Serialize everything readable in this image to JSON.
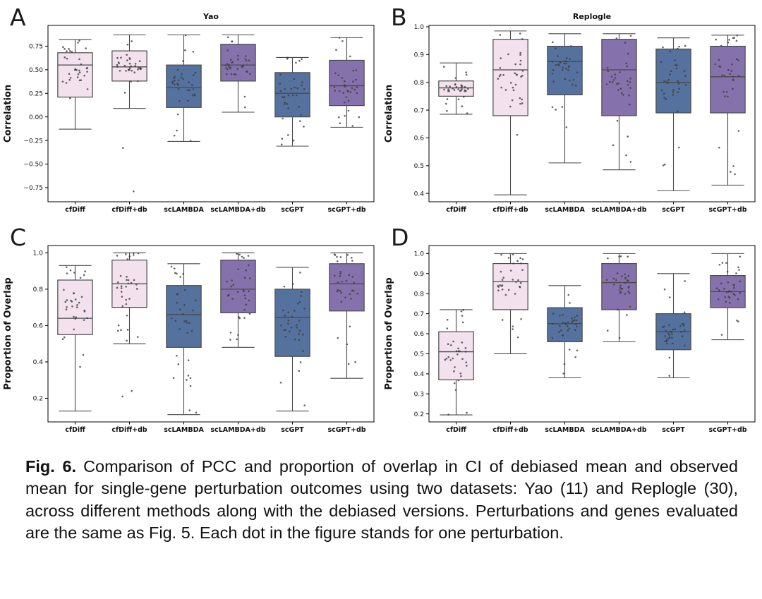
{
  "style": {
    "palette": {
      "pink": "#f3e2ee",
      "blue": "#55729e",
      "purple": "#8572ad"
    },
    "box_edge": "#4a4a4a",
    "median_color": "#4a4a4a",
    "point_color": "#3d3d3d",
    "frame_color": "#000000",
    "background": "#ffffff"
  },
  "chart_data": [
    {
      "type": "box",
      "panel_label": "A",
      "title": "Yao",
      "ylabel": "Correlation",
      "ylim": [
        -0.9,
        0.97
      ],
      "yticks": [
        {
          "v": 0.75,
          "label": "0.75"
        },
        {
          "v": 0.5,
          "label": "0.50"
        },
        {
          "v": 0.25,
          "label": "0.25"
        },
        {
          "v": 0.0,
          "label": "0.00"
        },
        {
          "v": -0.25,
          "label": "−0.25"
        },
        {
          "v": -0.5,
          "label": "−0.50"
        },
        {
          "v": -0.75,
          "label": "−0.75"
        }
      ],
      "categories": [
        "cfDiff",
        "cfDiff+db",
        "scLAMBDA",
        "scLAMBDA+db",
        "scGPT",
        "scGPT+db"
      ],
      "box_colors": [
        "pink",
        "pink",
        "blue",
        "purple",
        "blue",
        "purple"
      ],
      "boxes": [
        {
          "whislo": -0.13,
          "q1": 0.21,
          "med": 0.55,
          "q3": 0.68,
          "whishi": 0.82,
          "outliers": []
        },
        {
          "whislo": 0.09,
          "q1": 0.38,
          "med": 0.53,
          "q3": 0.7,
          "whishi": 0.87,
          "outliers": [
            -0.33,
            -0.79
          ]
        },
        {
          "whislo": -0.26,
          "q1": 0.1,
          "med": 0.31,
          "q3": 0.55,
          "whishi": 0.87,
          "outliers": []
        },
        {
          "whislo": 0.05,
          "q1": 0.38,
          "med": 0.55,
          "q3": 0.77,
          "whishi": 0.87,
          "outliers": []
        },
        {
          "whislo": -0.31,
          "q1": 0.0,
          "med": 0.25,
          "q3": 0.47,
          "whishi": 0.63,
          "outliers": []
        },
        {
          "whislo": -0.11,
          "q1": 0.12,
          "med": 0.33,
          "q3": 0.6,
          "whishi": 0.84,
          "outliers": []
        }
      ]
    },
    {
      "type": "box",
      "panel_label": "B",
      "title": "Replogle",
      "ylabel": "Correlation",
      "ylim": [
        0.37,
        1.005
      ],
      "yticks": [
        {
          "v": 1.0,
          "label": "1.0"
        },
        {
          "v": 0.9,
          "label": "0.9"
        },
        {
          "v": 0.8,
          "label": "0.8"
        },
        {
          "v": 0.7,
          "label": "0.7"
        },
        {
          "v": 0.6,
          "label": "0.6"
        },
        {
          "v": 0.5,
          "label": "0.5"
        },
        {
          "v": 0.4,
          "label": "0.4"
        }
      ],
      "categories": [
        "cfDiff",
        "cfDiff+db",
        "scLAMBDA",
        "scLAMBDA+db",
        "scGPT",
        "scGPT+db"
      ],
      "box_colors": [
        "pink",
        "pink",
        "blue",
        "purple",
        "blue",
        "purple"
      ],
      "boxes": [
        {
          "whislo": 0.685,
          "q1": 0.75,
          "med": 0.78,
          "q3": 0.805,
          "whishi": 0.87,
          "outliers": []
        },
        {
          "whislo": 0.395,
          "q1": 0.68,
          "med": 0.845,
          "q3": 0.955,
          "whishi": 0.985,
          "outliers": []
        },
        {
          "whislo": 0.51,
          "q1": 0.755,
          "med": 0.875,
          "q3": 0.93,
          "whishi": 0.975,
          "outliers": []
        },
        {
          "whislo": 0.485,
          "q1": 0.68,
          "med": 0.845,
          "q3": 0.955,
          "whishi": 0.975,
          "outliers": []
        },
        {
          "whislo": 0.41,
          "q1": 0.69,
          "med": 0.8,
          "q3": 0.92,
          "whishi": 0.96,
          "outliers": []
        },
        {
          "whislo": 0.43,
          "q1": 0.69,
          "med": 0.82,
          "q3": 0.93,
          "whishi": 0.97,
          "outliers": []
        }
      ]
    },
    {
      "type": "box",
      "panel_label": "C",
      "title": "",
      "ylabel": "Proportion of Overlap",
      "ylim": [
        0.07,
        1.04
      ],
      "yticks": [
        {
          "v": 1.0,
          "label": "1.0"
        },
        {
          "v": 0.8,
          "label": "0.8"
        },
        {
          "v": 0.6,
          "label": "0.6"
        },
        {
          "v": 0.4,
          "label": "0.4"
        },
        {
          "v": 0.2,
          "label": "0.2"
        }
      ],
      "categories": [
        "cfDiff",
        "cfDiff+db",
        "scLAMBDA",
        "scLAMBDA+db",
        "scGPT",
        "scGPT+db"
      ],
      "box_colors": [
        "pink",
        "pink",
        "blue",
        "purple",
        "blue",
        "purple"
      ],
      "boxes": [
        {
          "whislo": 0.13,
          "q1": 0.55,
          "med": 0.64,
          "q3": 0.85,
          "whishi": 0.93,
          "outliers": []
        },
        {
          "whislo": 0.5,
          "q1": 0.7,
          "med": 0.83,
          "q3": 0.96,
          "whishi": 1.0,
          "outliers": [
            0.24,
            0.21
          ]
        },
        {
          "whislo": 0.11,
          "q1": 0.48,
          "med": 0.66,
          "q3": 0.82,
          "whishi": 0.94,
          "outliers": []
        },
        {
          "whislo": 0.48,
          "q1": 0.67,
          "med": 0.8,
          "q3": 0.96,
          "whishi": 1.0,
          "outliers": []
        },
        {
          "whislo": 0.13,
          "q1": 0.43,
          "med": 0.645,
          "q3": 0.8,
          "whishi": 0.92,
          "outliers": []
        },
        {
          "whislo": 0.31,
          "q1": 0.68,
          "med": 0.83,
          "q3": 0.94,
          "whishi": 1.0,
          "outliers": []
        }
      ]
    },
    {
      "type": "box",
      "panel_label": "D",
      "title": "",
      "ylabel": "Proportion of Overlap",
      "ylim": [
        0.16,
        1.04
      ],
      "yticks": [
        {
          "v": 1.0,
          "label": "1.0"
        },
        {
          "v": 0.9,
          "label": "0.9"
        },
        {
          "v": 0.8,
          "label": "0.8"
        },
        {
          "v": 0.7,
          "label": "0.7"
        },
        {
          "v": 0.6,
          "label": "0.6"
        },
        {
          "v": 0.5,
          "label": "0.5"
        },
        {
          "v": 0.4,
          "label": "0.4"
        },
        {
          "v": 0.3,
          "label": "0.3"
        },
        {
          "v": 0.2,
          "label": "0.2"
        }
      ],
      "categories": [
        "cfDiff",
        "cfDiff+db",
        "scLAMBDA",
        "scLAMBDA+db",
        "scGPT",
        "scGPT+db"
      ],
      "box_colors": [
        "pink",
        "pink",
        "blue",
        "purple",
        "blue",
        "purple"
      ],
      "boxes": [
        {
          "whislo": 0.195,
          "q1": 0.37,
          "med": 0.51,
          "q3": 0.61,
          "whishi": 0.72,
          "outliers": []
        },
        {
          "whislo": 0.5,
          "q1": 0.72,
          "med": 0.86,
          "q3": 0.95,
          "whishi": 1.0,
          "outliers": []
        },
        {
          "whislo": 0.38,
          "q1": 0.56,
          "med": 0.65,
          "q3": 0.73,
          "whishi": 0.84,
          "outliers": []
        },
        {
          "whislo": 0.56,
          "q1": 0.72,
          "med": 0.855,
          "q3": 0.95,
          "whishi": 1.0,
          "outliers": []
        },
        {
          "whislo": 0.38,
          "q1": 0.52,
          "med": 0.61,
          "q3": 0.7,
          "whishi": 0.9,
          "outliers": []
        },
        {
          "whislo": 0.57,
          "q1": 0.73,
          "med": 0.81,
          "q3": 0.89,
          "whishi": 1.0,
          "outliers": []
        }
      ]
    }
  ],
  "caption": {
    "label": "Fig. 6.",
    "text": "Comparison of PCC and proportion of overlap in CI of debiased mean and observed mean for single-gene perturbation outcomes using two datasets: Yao (11) and Replogle (30), across different methods along with the debiased versions. Perturbations and genes evaluated are the same as Fig. 5. Each dot in the figure stands for one perturbation."
  }
}
